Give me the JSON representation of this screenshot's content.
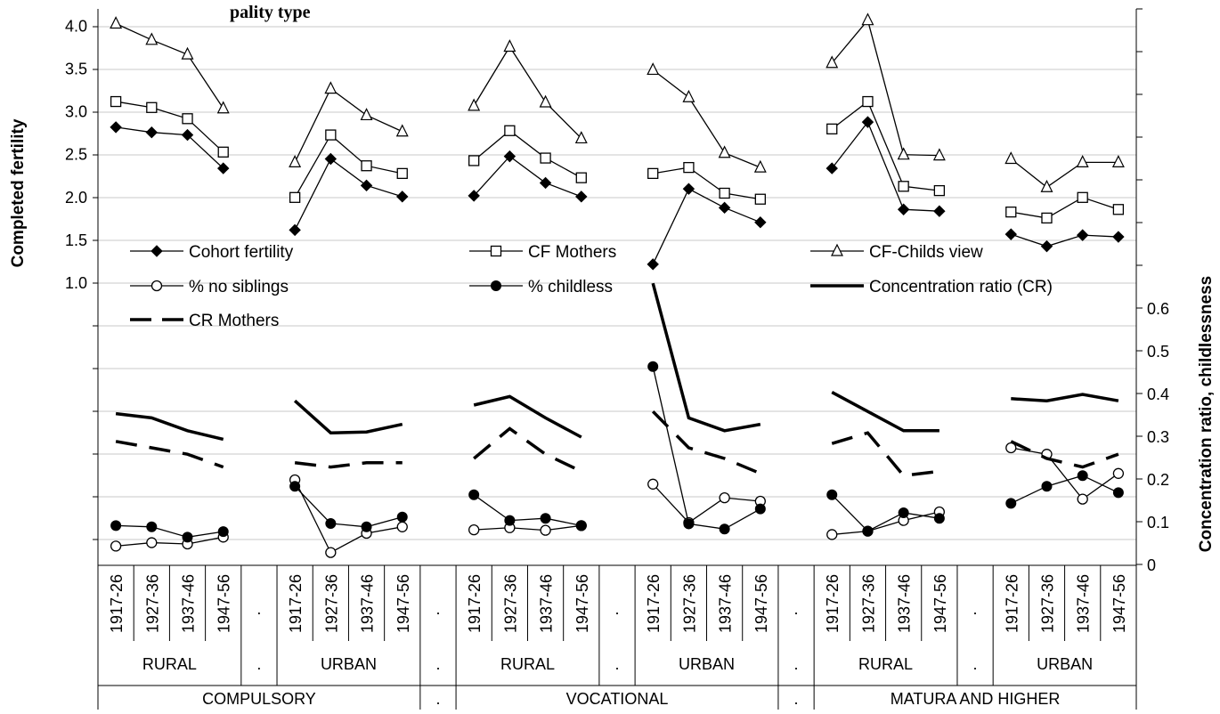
{
  "chart_data": {
    "type": "line",
    "title_fragment": "pality type",
    "y_left": {
      "label": "Completed fertility",
      "range": [
        0,
        4.2
      ],
      "ticks": [
        1.0,
        1.5,
        2.0,
        2.5,
        3.0,
        3.5,
        4.0
      ],
      "tick_labels": [
        "1.0",
        "1.5",
        "2.0",
        "2.5",
        "3.0",
        "3.5",
        "4.0"
      ]
    },
    "y_right": {
      "label": "Concentration ratio, childlessness",
      "range": [
        0,
        0.65
      ],
      "ticks": [
        0,
        0.1,
        0.2,
        0.3,
        0.4,
        0.5,
        0.6
      ],
      "tick_labels": [
        "0",
        "0.1",
        "0.2",
        "0.3",
        "0.4",
        "0.5",
        "0.6"
      ]
    },
    "cohorts": [
      "1917-26",
      "1927-36",
      "1937-46",
      "1947-56"
    ],
    "gap_label": ".",
    "areas": [
      "RURAL",
      ".",
      "URBAN",
      ".",
      "RURAL",
      ".",
      "URBAN",
      ".",
      "RURAL",
      ".",
      "URBAN"
    ],
    "education": [
      "COMPULSORY",
      ".",
      "VOCATIONAL",
      ".",
      "MATURA AND HIGHER"
    ],
    "groups": [
      {
        "education": "COMPULSORY",
        "area": "RURAL",
        "cohort_fertility": [
          2.82,
          2.76,
          2.73,
          2.34
        ],
        "cf_mothers": [
          3.12,
          3.05,
          2.92,
          2.53
        ],
        "cf_childs_view": [
          4.03,
          3.84,
          3.67,
          3.04
        ],
        "no_siblings": [
          0.045,
          0.053,
          0.05,
          0.066
        ],
        "childless": [
          0.093,
          0.09,
          0.066,
          0.079
        ],
        "concentration_ratio": [
          0.355,
          0.345,
          0.315,
          0.295
        ],
        "cr_mothers": [
          0.29,
          0.275,
          0.26,
          0.23
        ]
      },
      {
        "education": "COMPULSORY",
        "area": "URBAN",
        "cohort_fertility": [
          1.62,
          2.45,
          2.14,
          2.01
        ],
        "cf_mothers": [
          2.0,
          2.73,
          2.37,
          2.28
        ],
        "cf_childs_view": [
          2.41,
          3.27,
          2.96,
          2.77
        ],
        "no_siblings": [
          0.2,
          0.03,
          0.075,
          0.09
        ],
        "childless": [
          0.185,
          0.098,
          0.09,
          0.113
        ],
        "concentration_ratio": [
          0.385,
          0.31,
          0.312,
          0.33
        ],
        "cr_mothers": [
          0.24,
          0.23,
          0.24,
          0.24
        ]
      },
      {
        "education": "VOCATIONAL",
        "area": "RURAL",
        "cohort_fertility": [
          2.02,
          2.48,
          2.17,
          2.01
        ],
        "cf_mothers": [
          2.43,
          2.78,
          2.46,
          2.23
        ],
        "cf_childs_view": [
          3.07,
          3.76,
          3.11,
          2.69
        ],
        "no_siblings": [
          0.083,
          0.088,
          0.082,
          0.093
        ],
        "childless": [
          0.165,
          0.105,
          0.11,
          0.093
        ],
        "concentration_ratio": [
          0.375,
          0.395,
          0.345,
          0.3
        ],
        "cr_mothers": [
          0.25,
          0.32,
          0.26,
          0.22
        ]
      },
      {
        "education": "VOCATIONAL",
        "area": "URBAN",
        "cohort_fertility": [
          1.22,
          2.1,
          1.88,
          1.71
        ],
        "cf_mothers": [
          2.28,
          2.35,
          2.05,
          1.98
        ],
        "cf_childs_view": [
          3.49,
          3.17,
          2.52,
          2.35
        ],
        "no_siblings": [
          0.19,
          0.1,
          0.158,
          0.15
        ],
        "childless": [
          0.465,
          0.097,
          0.085,
          0.132
        ],
        "concentration_ratio": [
          0.66,
          0.345,
          0.315,
          0.33
        ],
        "cr_mothers": [
          0.36,
          0.275,
          0.25,
          0.215
        ]
      },
      {
        "education": "MATURA AND HIGHER",
        "area": "RURAL",
        "cohort_fertility": [
          2.34,
          2.88,
          1.86,
          1.84
        ],
        "cf_mothers": [
          2.8,
          3.12,
          2.13,
          2.08
        ],
        "cf_childs_view": [
          3.57,
          4.07,
          2.5,
          2.49
        ],
        "no_siblings": [
          0.072,
          0.08,
          0.105,
          0.125
        ],
        "childless": [
          0.165,
          0.08,
          0.123,
          0.11
        ],
        "concentration_ratio": [
          0.405,
          0.36,
          0.315,
          0.315
        ],
        "cr_mothers": [
          0.285,
          0.31,
          0.21,
          0.22
        ]
      },
      {
        "education": "MATURA AND HIGHER",
        "area": "URBAN",
        "cohort_fertility": [
          1.57,
          1.43,
          1.56,
          1.54
        ],
        "cf_mothers": [
          1.83,
          1.76,
          2.0,
          1.86
        ],
        "cf_childs_view": [
          2.45,
          2.12,
          2.41,
          2.41
        ],
        "no_siblings": [
          0.275,
          0.26,
          0.155,
          0.215
        ],
        "childless": [
          0.145,
          0.185,
          0.21,
          0.17
        ],
        "concentration_ratio": [
          0.39,
          0.385,
          0.4,
          0.385
        ],
        "cr_mothers": [
          0.29,
          0.25,
          0.23,
          0.26
        ]
      }
    ],
    "series": [
      {
        "key": "cohort_fertility",
        "name": "Cohort fertility",
        "axis": "left",
        "style": "line-marker",
        "marker": "diamond-filled"
      },
      {
        "key": "cf_mothers",
        "name": "CF Mothers",
        "axis": "left",
        "style": "line-marker",
        "marker": "square-open"
      },
      {
        "key": "cf_childs_view",
        "name": "CF-Childs view",
        "axis": "left",
        "style": "line-marker",
        "marker": "triangle-open"
      },
      {
        "key": "no_siblings",
        "name": "% no siblings",
        "axis": "right",
        "style": "line-marker",
        "marker": "circle-open"
      },
      {
        "key": "childless",
        "name": "% childless",
        "axis": "right",
        "style": "line-marker",
        "marker": "circle-filled"
      },
      {
        "key": "concentration_ratio",
        "name": "Concentration ratio (CR)",
        "axis": "right",
        "style": "thick"
      },
      {
        "key": "cr_mothers",
        "name": "CR Mothers",
        "axis": "right",
        "style": "dashed"
      }
    ],
    "grid": "horizontal",
    "legend_position": "middle-left, inside plot"
  }
}
